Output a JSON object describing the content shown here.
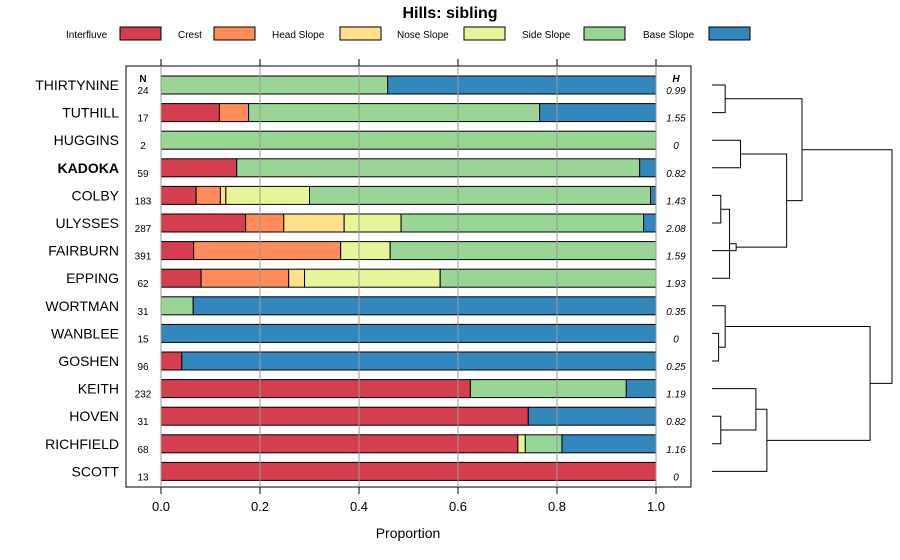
{
  "chart_data": {
    "type": "bar",
    "orientation": "horizontal",
    "stacked": true,
    "title": "Hills: sibling",
    "xlabel": "Proportion",
    "ylabel": "",
    "xlim": [
      0,
      1
    ],
    "x_ticks": [
      "0.0",
      "0.2",
      "0.4",
      "0.6",
      "0.8",
      "1.0"
    ],
    "n_header": "N",
    "h_header": "H",
    "legend_position": "top",
    "series": [
      {
        "name": "Interfluve",
        "color": "#D53E4F"
      },
      {
        "name": "Crest",
        "color": "#FC8D59"
      },
      {
        "name": "Head Slope",
        "color": "#FEE08B"
      },
      {
        "name": "Nose Slope",
        "color": "#E6F598"
      },
      {
        "name": "Side Slope",
        "color": "#99D594"
      },
      {
        "name": "Base Slope",
        "color": "#3288BD"
      }
    ],
    "categories": [
      "THIRTYNINE",
      "TUTHILL",
      "HUGGINS",
      "KADOKA",
      "COLBY",
      "ULYSSES",
      "FAIRBURN",
      "EPPING",
      "WORTMAN",
      "WANBLEE",
      "GOSHEN",
      "KEITH",
      "HOVEN",
      "RICHFIELD",
      "SCOTT"
    ],
    "highlight": "KADOKA",
    "n": [
      "24",
      "17",
      "2",
      "59",
      "183",
      "287",
      "391",
      "62",
      "31",
      "15",
      "96",
      "232",
      "31",
      "68",
      "13"
    ],
    "h": [
      "0.99",
      "1.55",
      "0",
      "0.82",
      "1.43",
      "2.08",
      "1.59",
      "1.93",
      "0.35",
      "0",
      "0.25",
      "1.19",
      "0.82",
      "1.16",
      "0"
    ],
    "proportions": [
      [
        0,
        0,
        0,
        0,
        0.458,
        0.542
      ],
      [
        0.118,
        0.059,
        0,
        0,
        0.588,
        0.235
      ],
      [
        0,
        0,
        0,
        0,
        1,
        0
      ],
      [
        0.153,
        0,
        0,
        0,
        0.814,
        0.033
      ],
      [
        0.071,
        0.049,
        0.011,
        0.169,
        0.689,
        0.011
      ],
      [
        0.171,
        0.077,
        0.122,
        0.115,
        0.49,
        0.025
      ],
      [
        0.066,
        0.297,
        0,
        0.1,
        0.537,
        0
      ],
      [
        0.081,
        0.177,
        0.032,
        0.274,
        0.436,
        0
      ],
      [
        0,
        0,
        0,
        0,
        0.065,
        0.935
      ],
      [
        0,
        0,
        0,
        0,
        0,
        1
      ],
      [
        0.042,
        0,
        0,
        0,
        0,
        0.958
      ],
      [
        0.625,
        0,
        0,
        0,
        0.315,
        0.06
      ],
      [
        0.742,
        0,
        0,
        0,
        0,
        0.258
      ],
      [
        0.721,
        0,
        0,
        0.015,
        0.074,
        0.19
      ],
      [
        1,
        0,
        0,
        0,
        0,
        0
      ]
    ],
    "dendrogram": {
      "merges": [
        [
          -1,
          -2
        ],
        [
          -5,
          -6
        ],
        [
          -8,
          2
        ],
        [
          -7,
          3
        ],
        [
          -3,
          -4
        ],
        [
          5,
          4
        ],
        [
          1,
          6
        ],
        [
          -10,
          -11
        ],
        [
          -9,
          8
        ],
        [
          -13,
          -14
        ],
        [
          -12,
          10
        ],
        [
          11,
          -15
        ],
        [
          9,
          12
        ],
        [
          7,
          13
        ]
      ],
      "heights": [
        0.3,
        0.2,
        0.4,
        0.55,
        0.65,
        1.7,
        2.05,
        0.15,
        0.3,
        0.2,
        1.0,
        1.25,
        3.6,
        4.1
      ],
      "leaf_order": [
        "THIRTYNINE",
        "TUTHILL",
        "HUGGINS",
        "KADOKA",
        "COLBY",
        "ULYSSES",
        "FAIRBURN",
        "EPPING",
        "WORTMAN",
        "WANBLEE",
        "GOSHEN",
        "KEITH",
        "HOVEN",
        "RICHFIELD",
        "SCOTT"
      ]
    }
  }
}
